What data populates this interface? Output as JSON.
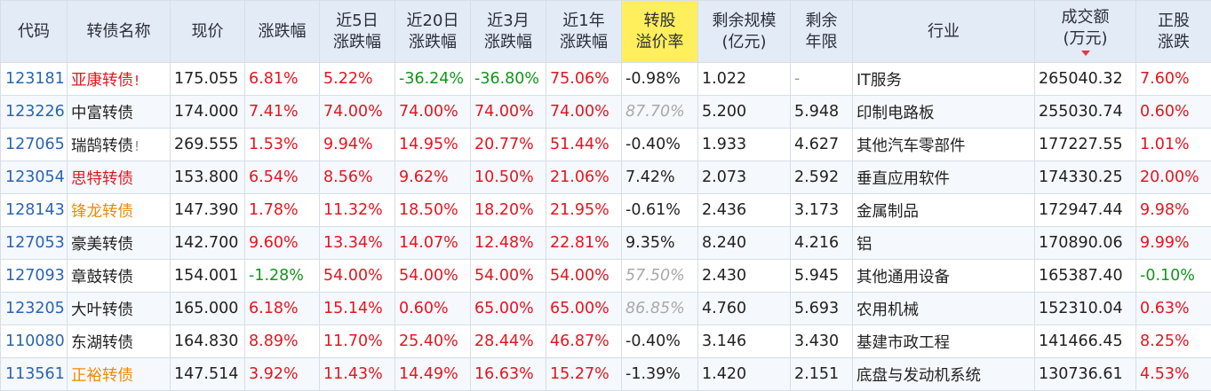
{
  "colors": {
    "header_bg": "#e3ebf6",
    "highlight_header_bg": "#ffef5c",
    "code_blue": "#2a64b2",
    "rise_red": "#e4161f",
    "fall_green": "#13951c",
    "name_orange": "#f08a00",
    "faded_gray": "#a9a9a9"
  },
  "headers": {
    "code": "代码",
    "name": "转债名称",
    "price": "现价",
    "change": "涨跌幅",
    "d5_l1": "近5日",
    "d5_l2": "涨跌幅",
    "d20_l1": "近20日",
    "d20_l2": "涨跌幅",
    "m3_l1": "近3月",
    "m3_l2": "涨跌幅",
    "y1_l1": "近1年",
    "y1_l2": "涨跌幅",
    "premium_l1": "转股",
    "premium_l2": "溢价率",
    "scale_l1": "剩余规模",
    "scale_l2": "(亿元)",
    "years_l1": "剩余",
    "years_l2": "年限",
    "industry": "行业",
    "volume_l1": "成交额",
    "volume_l2": "(万元)",
    "volume_sort_icon": "sort-desc-icon",
    "stock_l1": "正股",
    "stock_l2": "涨跌"
  },
  "rows": [
    {
      "code": "123181",
      "name": "亚康转债",
      "flag": "!",
      "name_color": "red",
      "price": "175.055",
      "change": "6.81%",
      "d5": "5.22%",
      "d20": "-36.24%",
      "m3": "-36.80%",
      "y1": "75.06%",
      "premium": "-0.98%",
      "scale": "1.022",
      "years": "-",
      "industry": "IT服务",
      "volume": "265040.32",
      "stock": "7.60%"
    },
    {
      "code": "123226",
      "name": "中富转债",
      "flag": "",
      "name_color": "black",
      "price": "174.000",
      "change": "7.41%",
      "d5": "74.00%",
      "d20": "74.00%",
      "m3": "74.00%",
      "y1": "74.00%",
      "premium": "87.70%",
      "scale": "5.200",
      "years": "5.948",
      "industry": "印制电路板",
      "volume": "255030.74",
      "stock": "0.60%"
    },
    {
      "code": "127065",
      "name": "瑞鹄转债",
      "flag": "!",
      "name_color": "black",
      "price": "269.555",
      "change": "1.53%",
      "d5": "9.94%",
      "d20": "14.95%",
      "m3": "20.77%",
      "y1": "51.44%",
      "premium": "-0.40%",
      "scale": "1.933",
      "years": "4.627",
      "industry": "其他汽车零部件",
      "volume": "177227.55",
      "stock": "1.01%"
    },
    {
      "code": "123054",
      "name": "思特转债",
      "flag": "",
      "name_color": "red",
      "price": "153.800",
      "change": "6.54%",
      "d5": "8.56%",
      "d20": "9.62%",
      "m3": "10.50%",
      "y1": "21.06%",
      "premium": "7.42%",
      "scale": "2.073",
      "years": "2.592",
      "industry": "垂直应用软件",
      "volume": "174330.25",
      "stock": "20.00%"
    },
    {
      "code": "128143",
      "name": "锋龙转债",
      "flag": "",
      "name_color": "orange",
      "price": "147.390",
      "change": "1.78%",
      "d5": "11.32%",
      "d20": "18.50%",
      "m3": "18.20%",
      "y1": "21.95%",
      "premium": "-0.61%",
      "scale": "2.436",
      "years": "3.173",
      "industry": "金属制品",
      "volume": "172947.44",
      "stock": "9.98%"
    },
    {
      "code": "127053",
      "name": "豪美转债",
      "flag": "",
      "name_color": "black",
      "price": "142.700",
      "change": "9.60%",
      "d5": "13.34%",
      "d20": "14.07%",
      "m3": "12.48%",
      "y1": "22.81%",
      "premium": "9.35%",
      "scale": "8.240",
      "years": "4.216",
      "industry": "铝",
      "volume": "170890.06",
      "stock": "9.99%"
    },
    {
      "code": "127093",
      "name": "章鼓转债",
      "flag": "",
      "name_color": "black",
      "price": "154.001",
      "change": "-1.28%",
      "d5": "54.00%",
      "d20": "54.00%",
      "m3": "54.00%",
      "y1": "54.00%",
      "premium": "57.50%",
      "scale": "2.430",
      "years": "5.945",
      "industry": "其他通用设备",
      "volume": "165387.40",
      "stock": "-0.10%"
    },
    {
      "code": "123205",
      "name": "大叶转债",
      "flag": "",
      "name_color": "black",
      "price": "165.000",
      "change": "6.18%",
      "d5": "15.14%",
      "d20": "0.60%",
      "m3": "65.00%",
      "y1": "65.00%",
      "premium": "86.85%",
      "scale": "4.760",
      "years": "5.693",
      "industry": "农用机械",
      "volume": "152310.04",
      "stock": "0.63%"
    },
    {
      "code": "110080",
      "name": "东湖转债",
      "flag": "",
      "name_color": "black",
      "price": "164.830",
      "change": "8.89%",
      "d5": "11.70%",
      "d20": "25.40%",
      "m3": "28.44%",
      "y1": "46.87%",
      "premium": "-0.40%",
      "scale": "3.146",
      "years": "3.430",
      "industry": "基建市政工程",
      "volume": "141466.45",
      "stock": "8.25%"
    },
    {
      "code": "113561",
      "name": "正裕转债",
      "flag": "",
      "name_color": "orange",
      "price": "147.514",
      "change": "3.92%",
      "d5": "11.43%",
      "d20": "14.49%",
      "m3": "16.63%",
      "y1": "15.27%",
      "premium": "-1.39%",
      "scale": "1.420",
      "years": "2.151",
      "industry": "底盘与发动机系统",
      "volume": "130736.61",
      "stock": "4.53%"
    }
  ]
}
